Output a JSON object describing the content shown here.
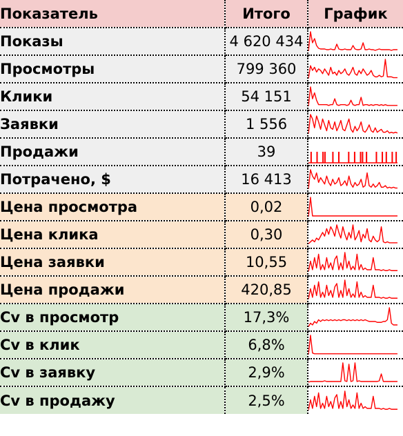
{
  "header": {
    "col_name": "Показатель",
    "col_total": "Итого",
    "col_chart": "График"
  },
  "colors": {
    "header_bg": "#f4cccc",
    "group1_bg": "#efefef",
    "group2_bg": "#fce5cd",
    "group3_bg": "#d9ead3",
    "spark_color": "#ff0000"
  },
  "rows": [
    {
      "name": "Показы",
      "total": "4 620 434",
      "group": 1,
      "spark_type": "line",
      "spark": [
        2,
        30,
        14,
        20,
        10,
        6,
        5,
        5,
        5,
        4,
        4,
        5,
        4,
        4,
        12,
        5,
        4,
        4,
        5,
        4,
        4,
        4,
        10,
        5,
        4,
        4,
        5,
        14,
        4,
        4,
        5,
        4,
        4,
        3,
        4,
        5,
        4,
        4,
        4,
        4,
        4,
        3,
        4,
        4,
        4
      ]
    },
    {
      "name": "Просмотры",
      "total": "799 360",
      "group": 1,
      "spark_type": "line",
      "spark": [
        2,
        18,
        12,
        16,
        10,
        14,
        12,
        8,
        14,
        10,
        6,
        16,
        8,
        10,
        6,
        12,
        8,
        10,
        14,
        8,
        6,
        10,
        16,
        8,
        6,
        12,
        8,
        14,
        10,
        6,
        8,
        12,
        6,
        4,
        4,
        6,
        4,
        5,
        26,
        4,
        4,
        4,
        3,
        3,
        3
      ]
    },
    {
      "name": "Клики",
      "total": "54 151",
      "group": 1,
      "spark_type": "line",
      "spark": [
        2,
        28,
        12,
        20,
        10,
        4,
        4,
        4,
        4,
        4,
        3,
        4,
        4,
        12,
        4,
        3,
        4,
        4,
        4,
        3,
        4,
        10,
        4,
        3,
        4,
        4,
        14,
        3,
        4,
        4,
        3,
        4,
        3,
        4,
        4,
        3,
        4,
        3,
        4,
        3,
        3,
        3,
        3,
        3,
        3
      ]
    },
    {
      "name": "Заявки",
      "total": "1 556",
      "group": 1,
      "spark_type": "line",
      "spark": [
        2,
        28,
        22,
        10,
        26,
        18,
        8,
        22,
        14,
        6,
        20,
        10,
        8,
        18,
        6,
        12,
        20,
        8,
        6,
        14,
        22,
        8,
        4,
        12,
        6,
        10,
        18,
        6,
        4,
        8,
        14,
        6,
        4,
        10,
        4,
        6,
        8,
        4,
        4,
        6,
        3,
        4,
        3,
        4,
        3
      ]
    },
    {
      "name": "Продажи",
      "total": "39",
      "group": 1,
      "spark_type": "bars",
      "spark": [
        0,
        1,
        0,
        0,
        1,
        0,
        0,
        1,
        1,
        0,
        0,
        0,
        1,
        0,
        0,
        1,
        0,
        0,
        0,
        0,
        1,
        0,
        0,
        1,
        0,
        0,
        1,
        1,
        0,
        1,
        0,
        0,
        0,
        0,
        1,
        0,
        0,
        1,
        0,
        1,
        0,
        0,
        1,
        0,
        1
      ]
    },
    {
      "name": "Потрачено, $",
      "total": "16 413",
      "group": 1,
      "spark_type": "line",
      "spark": [
        2,
        26,
        18,
        14,
        22,
        10,
        16,
        12,
        8,
        18,
        10,
        6,
        14,
        8,
        10,
        16,
        6,
        8,
        12,
        6,
        18,
        8,
        4,
        10,
        6,
        8,
        14,
        4,
        6,
        22,
        6,
        4,
        8,
        4,
        6,
        10,
        4,
        4,
        6,
        3,
        4,
        3,
        4,
        3,
        3
      ]
    },
    {
      "name": "Цена просмотра",
      "total": "0,02",
      "group": 2,
      "spark_type": "line",
      "spark": [
        2,
        30,
        3,
        3,
        3,
        3,
        3,
        3,
        3,
        3,
        3,
        3,
        3,
        3,
        3,
        3,
        3,
        3,
        3,
        3,
        3,
        3,
        3,
        3,
        3,
        3,
        3,
        3,
        3,
        3,
        3,
        3,
        3,
        3,
        3,
        3,
        3,
        3,
        3,
        3,
        3,
        3,
        3,
        3,
        3
      ]
    },
    {
      "name": "Цена клика",
      "total": "0,30",
      "group": 2,
      "spark_type": "line",
      "spark": [
        2,
        4,
        6,
        4,
        8,
        6,
        10,
        14,
        10,
        18,
        12,
        20,
        16,
        10,
        22,
        14,
        8,
        20,
        12,
        6,
        14,
        8,
        22,
        6,
        10,
        16,
        4,
        12,
        8,
        18,
        6,
        4,
        10,
        6,
        4,
        6,
        20,
        4,
        3,
        4,
        3,
        3,
        3,
        3,
        3
      ]
    },
    {
      "name": "Цена заявки",
      "total": "10,55",
      "group": 2,
      "spark_type": "line",
      "spark": [
        2,
        14,
        4,
        18,
        6,
        22,
        4,
        10,
        4,
        18,
        6,
        12,
        4,
        16,
        20,
        4,
        12,
        4,
        24,
        6,
        14,
        4,
        8,
        4,
        22,
        4,
        10,
        4,
        6,
        4,
        4,
        4,
        18,
        4,
        4,
        4,
        3,
        4,
        3,
        3,
        4,
        3,
        3,
        3,
        3
      ]
    },
    {
      "name": "Цена продажи",
      "total": "420,85",
      "group": 2,
      "spark_type": "line",
      "spark": [
        2,
        14,
        4,
        18,
        6,
        22,
        4,
        10,
        4,
        18,
        6,
        12,
        4,
        16,
        20,
        4,
        12,
        4,
        24,
        6,
        14,
        4,
        8,
        4,
        22,
        4,
        10,
        4,
        6,
        4,
        4,
        4,
        18,
        4,
        4,
        4,
        3,
        4,
        3,
        3,
        4,
        3,
        3,
        3,
        3
      ]
    },
    {
      "name": "Cv в просмотр",
      "total": "17,3%",
      "group": 3,
      "spark_type": "line",
      "spark": [
        2,
        6,
        4,
        8,
        6,
        10,
        8,
        10,
        9,
        10,
        9,
        10,
        9,
        10,
        9,
        10,
        9,
        10,
        10,
        9,
        10,
        9,
        10,
        9,
        10,
        9,
        10,
        9,
        10,
        9,
        8,
        8,
        8,
        8,
        7,
        7,
        7,
        8,
        8,
        10,
        24,
        6,
        4,
        4,
        4
      ]
    },
    {
      "name": "Cv в клик",
      "total": "6,8%",
      "group": 3,
      "spark_type": "line",
      "spark": [
        2,
        28,
        4,
        3,
        3,
        3,
        3,
        3,
        3,
        3,
        3,
        3,
        3,
        3,
        3,
        3,
        3,
        3,
        3,
        3,
        3,
        3,
        3,
        3,
        3,
        3,
        3,
        3,
        3,
        3,
        3,
        3,
        3,
        3,
        3,
        3,
        3,
        3,
        3,
        3,
        3,
        3,
        3,
        3,
        3
      ]
    },
    {
      "name": "Cv в заявку",
      "total": "2,9%",
      "group": 3,
      "spark_type": "line",
      "spark": [
        2,
        3,
        3,
        3,
        3,
        3,
        3,
        3,
        4,
        3,
        3,
        3,
        3,
        3,
        3,
        3,
        3,
        30,
        4,
        3,
        28,
        3,
        4,
        30,
        3,
        4,
        3,
        3,
        3,
        3,
        3,
        3,
        3,
        3,
        3,
        4,
        14,
        3,
        3,
        3,
        3,
        3,
        3,
        3,
        3
      ]
    },
    {
      "name": "Cv в продажу",
      "total": "2,5%",
      "group": 3,
      "spark_type": "line",
      "spark": [
        2,
        14,
        4,
        18,
        6,
        22,
        4,
        10,
        4,
        18,
        6,
        12,
        4,
        16,
        20,
        4,
        12,
        4,
        24,
        6,
        14,
        4,
        8,
        4,
        22,
        4,
        10,
        4,
        6,
        4,
        4,
        4,
        18,
        4,
        4,
        4,
        3,
        4,
        3,
        3,
        4,
        3,
        3,
        3,
        3
      ]
    }
  ]
}
